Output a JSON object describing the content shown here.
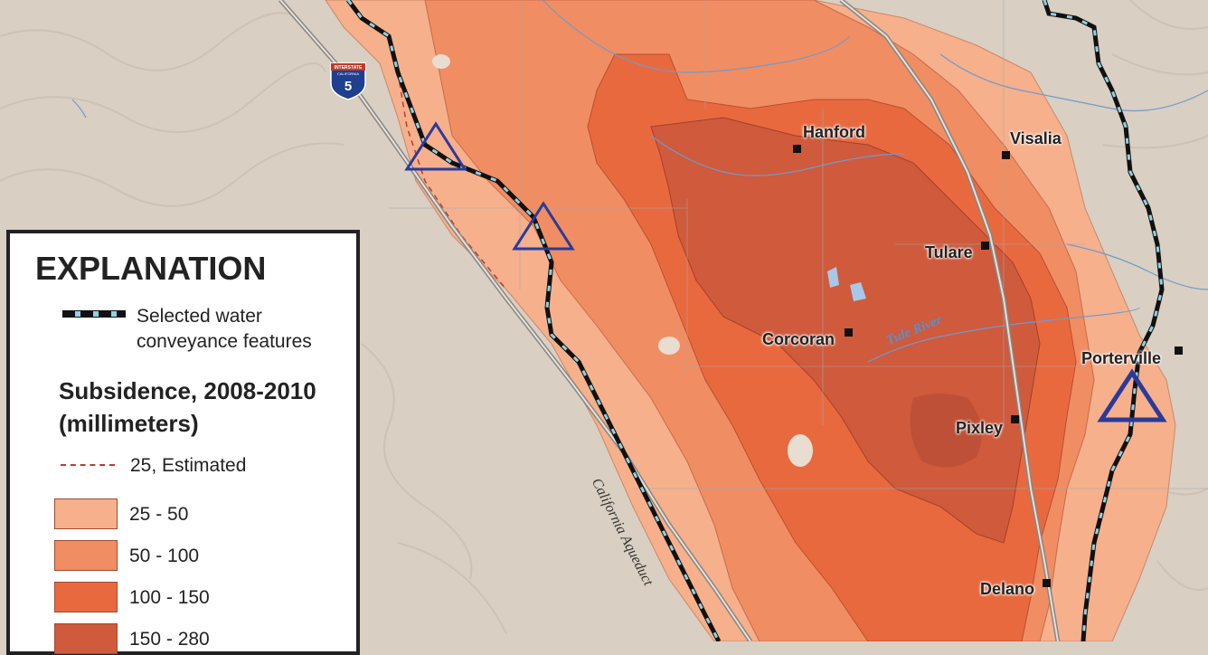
{
  "legend": {
    "title": "EXPLANATION",
    "conveyance_label": "Selected water conveyance features",
    "subsidence_title": "Subsidence, 2008-2010 (millimeters)",
    "estimated_label": "25, Estimated",
    "classes": [
      {
        "label": "25 - 50",
        "color": "#f6b08c"
      },
      {
        "label": "50 - 100",
        "color": "#f18d62"
      },
      {
        "label": "100 - 150",
        "color": "#e9693f"
      },
      {
        "label": "150 - 280",
        "color": "#cf5a3c"
      }
    ]
  },
  "cities": [
    "Hanford",
    "Visalia",
    "Tulare",
    "Corcoran",
    "Porterville",
    "Pixley",
    "Delano"
  ],
  "labels": {
    "river": "Tule River",
    "aqueduct": "California Aqueduct",
    "interstate_shield_top": "INTERSTATE",
    "interstate_shield_mid": "CALIFORNIA",
    "interstate_number": "5"
  },
  "colors": {
    "background": "#d9cfc2",
    "conveyance_dash": "#111111",
    "conveyance_gap": "#8ed3e6",
    "triangle": "#2b3a9a",
    "highway": "#8a8580"
  }
}
